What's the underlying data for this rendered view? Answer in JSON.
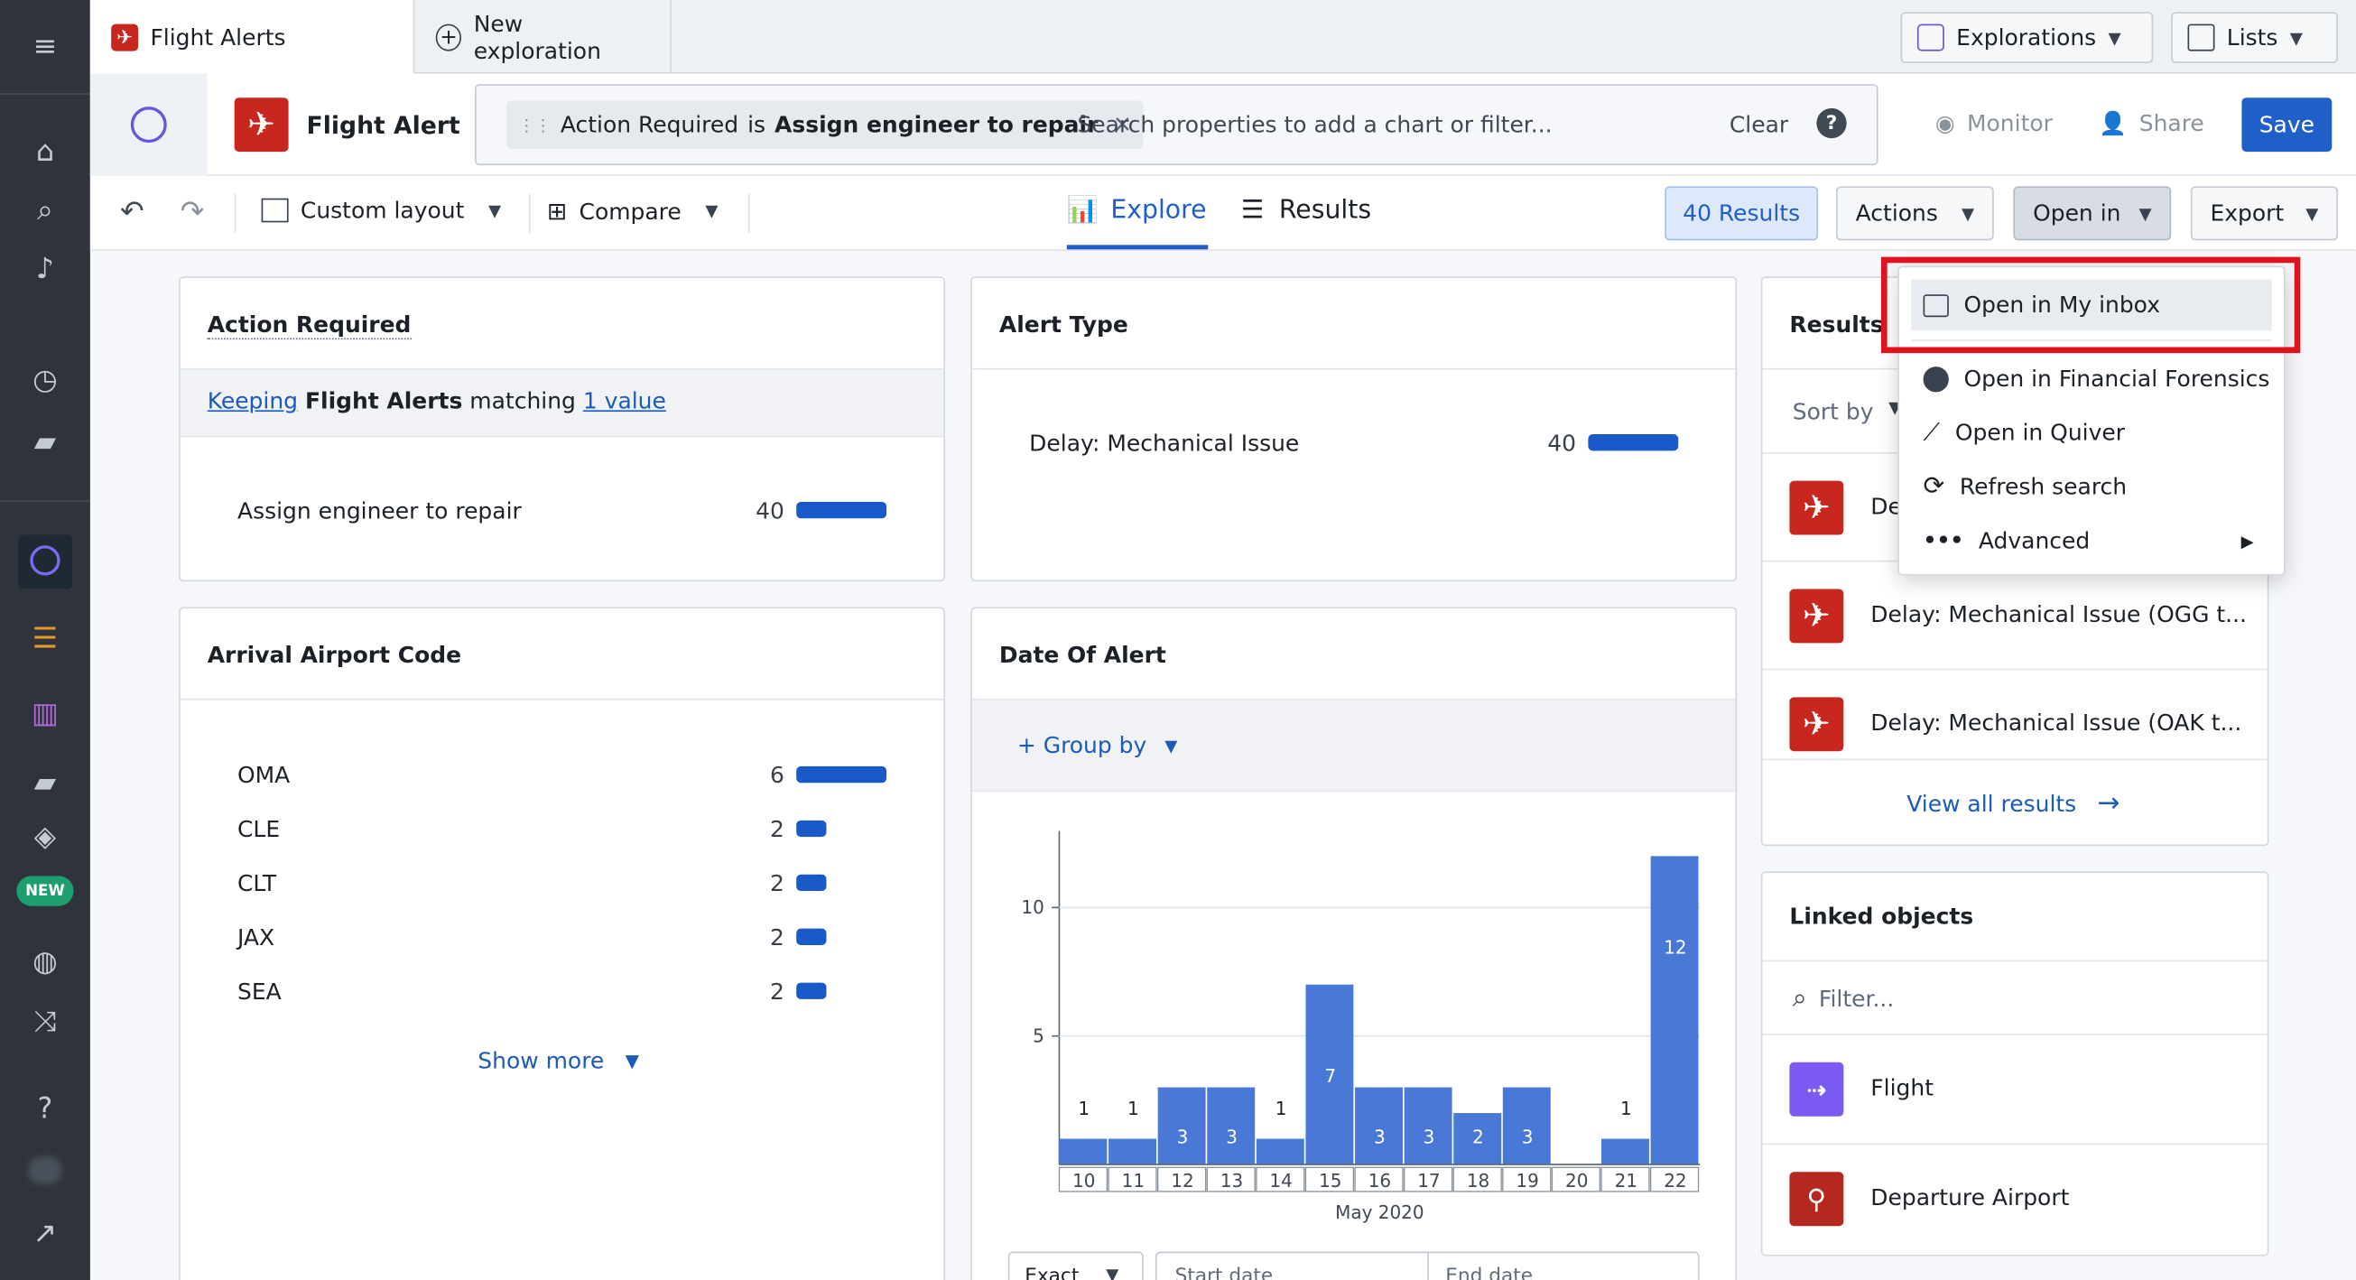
{
  "tabs": [
    {
      "label": "Flight Alerts"
    },
    {
      "label": "New exploration"
    }
  ],
  "top_buttons": {
    "explorations": "Explorations",
    "lists": "Lists"
  },
  "header": {
    "object_type": "Flight Alert",
    "filter_chip": {
      "property": "Action Required",
      "op": "is",
      "value": "Assign engineer to repair"
    },
    "search_placeholder": "Search properties to add a chart or filter...",
    "clear": "Clear",
    "monitor": "Monitor",
    "share": "Share",
    "save": "Save"
  },
  "toolbar": {
    "custom_layout": "Custom layout",
    "compare": "Compare",
    "explore_tab": "Explore",
    "results_tab": "Results",
    "results_count": "40 Results",
    "actions": "Actions",
    "open_in": "Open in",
    "export": "Export"
  },
  "sidebar": {
    "new_badge": "NEW"
  },
  "action_required": {
    "title": "Action Required",
    "keeping_text": "Keeping",
    "object": "Flight Alerts",
    "matching": "matching",
    "value_link": "1 value",
    "rows": [
      {
        "label": "Assign engineer to repair",
        "count": "40",
        "fraction": 1.0
      }
    ]
  },
  "alert_type": {
    "title": "Alert Type",
    "rows": [
      {
        "label": "Delay: Mechanical Issue",
        "count": "40",
        "fraction": 1.0
      }
    ]
  },
  "arrival_airport": {
    "title": "Arrival Airport Code",
    "rows": [
      {
        "label": "OMA",
        "count": "6",
        "fraction": 1.0
      },
      {
        "label": "CLE",
        "count": "2",
        "fraction": 0.33
      },
      {
        "label": "CLT",
        "count": "2",
        "fraction": 0.33
      },
      {
        "label": "JAX",
        "count": "2",
        "fraction": 0.33
      },
      {
        "label": "SEA",
        "count": "2",
        "fraction": 0.33
      }
    ],
    "show_more": "Show more"
  },
  "date_of_alert": {
    "title": "Date Of Alert",
    "group_by": "+ Group by",
    "exact": "Exact",
    "start_date": "Start date",
    "end_date": "End date"
  },
  "chart_data": {
    "type": "bar",
    "categories": [
      "10",
      "11",
      "12",
      "13",
      "14",
      "15",
      "16",
      "17",
      "18",
      "19",
      "20",
      "21",
      "22"
    ],
    "values": [
      1,
      1,
      3,
      3,
      1,
      7,
      3,
      3,
      2,
      3,
      0,
      1,
      12
    ],
    "xlabel": "May 2020",
    "ylabel": "",
    "yticks": [
      5,
      10
    ],
    "ylim": [
      0,
      13
    ],
    "color": "#4a78d6"
  },
  "results_panel": {
    "title": "Results",
    "sort_by": "Sort by",
    "items": [
      {
        "label": "De"
      },
      {
        "label": "Delay: Mechanical Issue (OGG t..."
      },
      {
        "label": "Delay: Mechanical Issue (OAK t..."
      }
    ],
    "view_all": "View all results"
  },
  "linked_objects": {
    "title": "Linked objects",
    "filter_placeholder": "Filter...",
    "items": [
      {
        "label": "Flight",
        "color": "#7a5af0"
      },
      {
        "label": "Departure Airport",
        "color": "#b5281f"
      }
    ]
  },
  "open_in_menu": {
    "items": [
      {
        "label": "Open in My inbox",
        "icon": "inbox-icon"
      },
      {
        "label": "Open in Financial Forensics",
        "icon": "chart-pie-icon"
      },
      {
        "label": "Open in Quiver",
        "icon": "line-chart-icon"
      },
      {
        "label": "Refresh search",
        "icon": "refresh-icon"
      },
      {
        "label": "Advanced",
        "icon": "more-icon"
      }
    ]
  },
  "colors": {
    "primary": "#1f5fc7",
    "highlight": "#e0121f",
    "brand_red": "#c8271f"
  }
}
